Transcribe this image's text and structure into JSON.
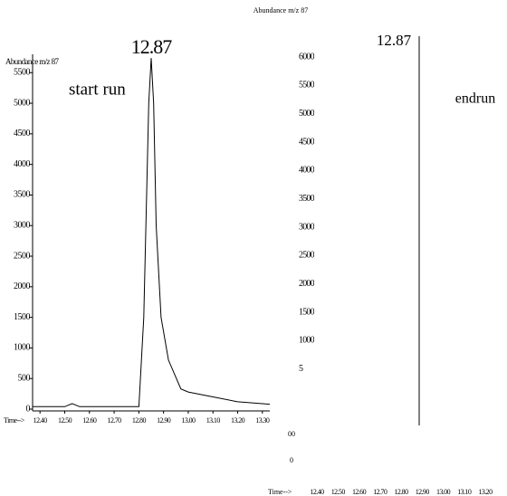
{
  "chart_data": [
    {
      "type": "line",
      "title": "12.87",
      "y_label": "Abundance m/z 87",
      "x_label": "Time-->",
      "annotation": "start run",
      "x": [
        12.37,
        12.5,
        12.53,
        12.56,
        12.8,
        12.82,
        12.84,
        12.85,
        12.86,
        12.87,
        12.89,
        12.92,
        12.97,
        13.0,
        13.1,
        13.2,
        13.33
      ],
      "series": [
        {
          "color": "#000000",
          "values": [
            40,
            40,
            90,
            40,
            40,
            1500,
            5000,
            5740,
            5000,
            3000,
            1500,
            800,
            330,
            280,
            200,
            120,
            80
          ]
        },
        {
          "color": "#000000",
          "values": [
            null,
            null,
            null,
            null,
            40,
            null,
            null,
            null,
            null,
            null,
            null,
            null,
            300,
            null,
            null,
            null,
            null
          ]
        }
      ],
      "xlim": [
        12.37,
        13.33
      ],
      "ylim": [
        0,
        5800
      ],
      "xticks": [
        {
          "value": 12.4,
          "label": "12.40"
        },
        {
          "value": 12.5,
          "label": "12.50"
        },
        {
          "value": 12.6,
          "label": "12.60"
        },
        {
          "value": 12.7,
          "label": "12.70"
        },
        {
          "value": 12.8,
          "label": "12.80"
        },
        {
          "value": 12.9,
          "label": "12.90"
        },
        {
          "value": 13.0,
          "label": "13.00"
        },
        {
          "value": 13.1,
          "label": "13.10"
        },
        {
          "value": 13.2,
          "label": "13.20"
        },
        {
          "value": 13.3,
          "label": "13.30"
        }
      ],
      "yticks": [
        0,
        500,
        1000,
        1500,
        2000,
        2500,
        3000,
        3500,
        4000,
        4500,
        5000,
        5500
      ]
    },
    {
      "type": "axis",
      "title": "Abundance m/z 87",
      "x_label": "Time-->",
      "annotations": [
        "12.87",
        "endrun",
        "00",
        "0"
      ],
      "ylim": [
        0,
        6000
      ],
      "yticks": [
        6000,
        5500,
        5000,
        4500,
        4000,
        3500,
        3000,
        2500,
        2000,
        1500,
        1000,
        {
          "value": 500,
          "label": "5"
        }
      ],
      "xticks": [
        {
          "value": 12.4,
          "label": "12.40"
        },
        {
          "value": 12.5,
          "label": "12.50"
        },
        {
          "value": 12.6,
          "label": "12.60"
        },
        {
          "value": 12.7,
          "label": "12.70"
        },
        {
          "value": 12.8,
          "label": "12.80"
        },
        {
          "value": 12.9,
          "label": "12.90"
        },
        {
          "value": 13.0,
          "label": "13.00"
        },
        {
          "value": 13.1,
          "label": "13.10"
        },
        {
          "value": 13.2,
          "label": "13.20"
        }
      ]
    }
  ]
}
